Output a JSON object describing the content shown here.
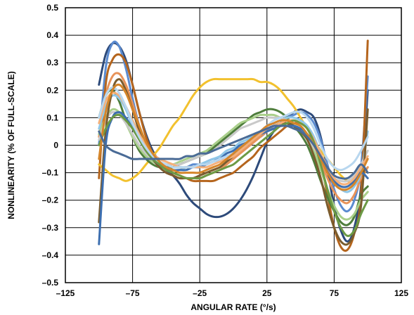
{
  "chart_data": {
    "type": "line",
    "title": "",
    "xlabel": "ANGULAR RATE (°/s)",
    "ylabel": "NONLINEARITY (% OF FULL-SCALE)",
    "xlim": [
      -125,
      125
    ],
    "ylim": [
      -0.5,
      0.5
    ],
    "x_ticks": [
      -125,
      -75,
      -25,
      25,
      75,
      125
    ],
    "x_tick_labels": [
      "–125",
      "–75",
      "–25",
      "25",
      "75",
      "125"
    ],
    "y_ticks": [
      0.5,
      0.4,
      0.3,
      0.2,
      0.1,
      0,
      -0.1,
      -0.2,
      -0.3,
      -0.4,
      -0.5
    ],
    "y_tick_labels": [
      "0.5",
      "0.4",
      "0.3",
      "0.2",
      "0.1",
      "0",
      "–0.1",
      "–0.2",
      "–0.3",
      "–0.4",
      "–0.5"
    ],
    "grid": true,
    "legend": "none",
    "x": [
      -100,
      -95,
      -90,
      -85,
      -80,
      -75,
      -70,
      -65,
      -60,
      -55,
      -50,
      -45,
      -40,
      -35,
      -30,
      -25,
      -20,
      -15,
      -10,
      -5,
      0,
      5,
      10,
      15,
      20,
      25,
      30,
      35,
      40,
      45,
      50,
      55,
      60,
      65,
      70,
      75,
      80,
      85,
      90,
      95,
      100
    ],
    "series": [
      {
        "color": "#2d4a7a",
        "values": [
          0.22,
          0.33,
          0.37,
          0.36,
          0.31,
          0.22,
          0.12,
          0.04,
          -0.02,
          -0.06,
          -0.09,
          -0.11,
          -0.14,
          -0.18,
          -0.21,
          -0.23,
          -0.25,
          -0.26,
          -0.26,
          -0.25,
          -0.23,
          -0.2,
          -0.16,
          -0.11,
          -0.05,
          0.01,
          0.05,
          0.08,
          0.1,
          0.12,
          0.13,
          0.12,
          0.1,
          0.03,
          -0.09,
          -0.22,
          -0.31,
          -0.35,
          -0.3,
          -0.15,
          0.2
        ]
      },
      {
        "color": "#5b8bd0",
        "values": [
          0.0,
          0.28,
          0.37,
          0.36,
          0.28,
          0.17,
          0.07,
          0.0,
          -0.04,
          -0.06,
          -0.07,
          -0.08,
          -0.08,
          -0.08,
          -0.07,
          -0.07,
          -0.06,
          -0.05,
          -0.05,
          -0.04,
          -0.03,
          -0.01,
          0.0,
          0.02,
          0.03,
          0.05,
          0.07,
          0.08,
          0.1,
          0.11,
          0.12,
          0.11,
          0.08,
          0.02,
          -0.07,
          -0.16,
          -0.22,
          -0.24,
          -0.2,
          -0.08,
          0.25
        ]
      },
      {
        "color": "#b5651d",
        "values": [
          -0.12,
          0.22,
          0.31,
          0.33,
          0.3,
          0.22,
          0.12,
          0.03,
          -0.03,
          -0.06,
          -0.08,
          -0.1,
          -0.11,
          -0.12,
          -0.13,
          -0.13,
          -0.13,
          -0.13,
          -0.12,
          -0.11,
          -0.1,
          -0.08,
          -0.06,
          -0.04,
          -0.01,
          0.01,
          0.03,
          0.05,
          0.07,
          0.08,
          0.08,
          0.06,
          0.01,
          -0.07,
          -0.18,
          -0.3,
          -0.37,
          -0.38,
          -0.32,
          -0.18,
          0.38
        ]
      },
      {
        "color": "#f2c12e",
        "values": [
          -0.07,
          -0.09,
          -0.11,
          -0.12,
          -0.13,
          -0.12,
          -0.1,
          -0.07,
          -0.04,
          -0.01,
          0.03,
          0.07,
          0.1,
          0.14,
          0.18,
          0.21,
          0.23,
          0.24,
          0.24,
          0.24,
          0.24,
          0.24,
          0.24,
          0.24,
          0.23,
          0.23,
          0.22,
          0.2,
          0.17,
          0.14,
          0.1,
          0.06,
          0.02,
          -0.02,
          -0.05,
          -0.08,
          -0.11,
          -0.13,
          -0.14,
          -0.12,
          -0.08
        ]
      },
      {
        "color": "#4e7d3b",
        "values": [
          0.1,
          0.18,
          0.2,
          0.16,
          0.09,
          0.03,
          -0.02,
          -0.05,
          -0.07,
          -0.08,
          -0.08,
          -0.08,
          -0.07,
          -0.06,
          -0.05,
          -0.04,
          -0.03,
          -0.01,
          0.01,
          0.03,
          0.05,
          0.07,
          0.09,
          0.11,
          0.12,
          0.13,
          0.13,
          0.12,
          0.1,
          0.07,
          0.04,
          0.0,
          -0.06,
          -0.13,
          -0.19,
          -0.24,
          -0.28,
          -0.29,
          -0.26,
          -0.18,
          -0.15
        ]
      },
      {
        "color": "#e8935a",
        "values": [
          0.03,
          0.18,
          0.25,
          0.26,
          0.22,
          0.15,
          0.07,
          0.0,
          -0.05,
          -0.08,
          -0.1,
          -0.11,
          -0.12,
          -0.12,
          -0.12,
          -0.12,
          -0.11,
          -0.1,
          -0.09,
          -0.07,
          -0.05,
          -0.03,
          -0.01,
          0.01,
          0.03,
          0.05,
          0.06,
          0.07,
          0.07,
          0.07,
          0.06,
          0.04,
          0.0,
          -0.06,
          -0.12,
          -0.17,
          -0.2,
          -0.21,
          -0.18,
          -0.12,
          -0.08
        ]
      },
      {
        "color": "#8fc7e8",
        "values": [
          0.06,
          0.14,
          0.18,
          0.17,
          0.13,
          0.07,
          0.02,
          -0.02,
          -0.05,
          -0.07,
          -0.08,
          -0.09,
          -0.09,
          -0.08,
          -0.08,
          -0.07,
          -0.06,
          -0.05,
          -0.04,
          -0.02,
          -0.01,
          0.01,
          0.02,
          0.04,
          0.05,
          0.07,
          0.08,
          0.09,
          0.1,
          0.1,
          0.09,
          0.07,
          0.03,
          -0.03,
          -0.09,
          -0.14,
          -0.16,
          -0.17,
          -0.15,
          -0.1,
          0.05
        ]
      },
      {
        "color": "#a9cf8a",
        "values": [
          0.04,
          0.1,
          0.13,
          0.12,
          0.08,
          0.03,
          -0.01,
          -0.04,
          -0.06,
          -0.07,
          -0.07,
          -0.07,
          -0.06,
          -0.05,
          -0.04,
          -0.03,
          -0.02,
          0.0,
          0.02,
          0.04,
          0.06,
          0.08,
          0.09,
          0.1,
          0.11,
          0.11,
          0.11,
          0.1,
          0.09,
          0.08,
          0.06,
          0.03,
          -0.02,
          -0.09,
          -0.16,
          -0.22,
          -0.26,
          -0.27,
          -0.25,
          -0.2,
          -0.17
        ]
      },
      {
        "color": "#c9c9c9",
        "values": [
          0.02,
          0.09,
          0.12,
          0.11,
          0.08,
          0.04,
          0.0,
          -0.03,
          -0.05,
          -0.06,
          -0.07,
          -0.07,
          -0.07,
          -0.06,
          -0.05,
          -0.04,
          -0.03,
          -0.02,
          0.0,
          0.02,
          0.04,
          0.06,
          0.07,
          0.08,
          0.09,
          0.1,
          0.1,
          0.1,
          0.09,
          0.08,
          0.06,
          0.03,
          -0.01,
          -0.05,
          -0.09,
          -0.12,
          -0.13,
          -0.13,
          -0.11,
          -0.07,
          -0.02
        ]
      },
      {
        "color": "#7a5c2e",
        "values": [
          -0.28,
          0.05,
          0.2,
          0.24,
          0.2,
          0.13,
          0.05,
          -0.01,
          -0.05,
          -0.08,
          -0.1,
          -0.11,
          -0.12,
          -0.12,
          -0.12,
          -0.11,
          -0.1,
          -0.09,
          -0.08,
          -0.06,
          -0.04,
          -0.02,
          0.0,
          0.02,
          0.04,
          0.06,
          0.07,
          0.08,
          0.08,
          0.07,
          0.05,
          0.02,
          -0.04,
          -0.12,
          -0.22,
          -0.3,
          -0.35,
          -0.36,
          -0.32,
          -0.22,
          0.13
        ]
      },
      {
        "color": "#3d6fb0",
        "values": [
          -0.36,
          0.0,
          0.1,
          0.12,
          0.1,
          0.06,
          0.02,
          -0.02,
          -0.05,
          -0.07,
          -0.08,
          -0.09,
          -0.09,
          -0.09,
          -0.08,
          -0.08,
          -0.07,
          -0.06,
          -0.05,
          -0.03,
          -0.02,
          0.0,
          0.01,
          0.03,
          0.04,
          0.05,
          0.06,
          0.07,
          0.07,
          0.07,
          0.06,
          0.04,
          0.01,
          -0.04,
          -0.09,
          -0.13,
          -0.15,
          -0.15,
          -0.13,
          -0.1,
          -0.12
        ]
      },
      {
        "color": "#f5b07a",
        "values": [
          0.08,
          0.16,
          0.19,
          0.18,
          0.14,
          0.09,
          0.04,
          0.0,
          -0.03,
          -0.05,
          -0.06,
          -0.07,
          -0.08,
          -0.08,
          -0.08,
          -0.08,
          -0.08,
          -0.07,
          -0.06,
          -0.05,
          -0.04,
          -0.02,
          0.0,
          0.02,
          0.04,
          0.06,
          0.07,
          0.08,
          0.09,
          0.09,
          0.08,
          0.06,
          0.02,
          -0.03,
          -0.08,
          -0.12,
          -0.14,
          -0.14,
          -0.12,
          -0.08,
          -0.04
        ]
      },
      {
        "color": "#6c9a45",
        "values": [
          0.0,
          0.06,
          0.1,
          0.11,
          0.09,
          0.06,
          0.02,
          -0.02,
          -0.05,
          -0.07,
          -0.09,
          -0.1,
          -0.11,
          -0.12,
          -0.12,
          -0.12,
          -0.11,
          -0.1,
          -0.09,
          -0.08,
          -0.07,
          -0.05,
          -0.03,
          -0.01,
          0.01,
          0.03,
          0.05,
          0.07,
          0.08,
          0.09,
          0.08,
          0.06,
          0.01,
          -0.07,
          -0.16,
          -0.24,
          -0.3,
          -0.33,
          -0.31,
          -0.25,
          -0.2
        ]
      },
      {
        "color": "#b8d7ef",
        "values": [
          0.1,
          0.18,
          0.21,
          0.19,
          0.14,
          0.08,
          0.03,
          -0.01,
          -0.04,
          -0.06,
          -0.07,
          -0.08,
          -0.08,
          -0.08,
          -0.08,
          -0.07,
          -0.07,
          -0.06,
          -0.05,
          -0.04,
          -0.03,
          -0.01,
          0.01,
          0.03,
          0.05,
          0.07,
          0.09,
          0.1,
          0.11,
          0.12,
          0.12,
          0.1,
          0.06,
          0.0,
          -0.05,
          -0.08,
          -0.09,
          -0.08,
          -0.06,
          -0.02,
          0.03
        ]
      },
      {
        "color": "#d4852a",
        "values": [
          -0.05,
          0.12,
          0.2,
          0.22,
          0.19,
          0.13,
          0.07,
          0.01,
          -0.03,
          -0.06,
          -0.08,
          -0.09,
          -0.1,
          -0.1,
          -0.1,
          -0.1,
          -0.09,
          -0.08,
          -0.07,
          -0.05,
          -0.03,
          -0.01,
          0.01,
          0.03,
          0.05,
          0.07,
          0.08,
          0.09,
          0.09,
          0.08,
          0.07,
          0.04,
          0.0,
          -0.05,
          -0.1,
          -0.14,
          -0.16,
          -0.16,
          -0.14,
          -0.1,
          -0.05
        ]
      },
      {
        "color": "#4a6b96",
        "values": [
          0.05,
          0.0,
          -0.02,
          -0.03,
          -0.04,
          -0.05,
          -0.05,
          -0.05,
          -0.05,
          -0.05,
          -0.05,
          -0.05,
          -0.05,
          -0.04,
          -0.04,
          -0.03,
          -0.03,
          -0.02,
          -0.01,
          0.0,
          0.01,
          0.02,
          0.03,
          0.04,
          0.05,
          0.06,
          0.07,
          0.07,
          0.07,
          0.06,
          0.05,
          0.03,
          0.0,
          -0.04,
          -0.08,
          -0.11,
          -0.12,
          -0.12,
          -0.1,
          -0.07,
          -0.1
        ]
      }
    ]
  }
}
